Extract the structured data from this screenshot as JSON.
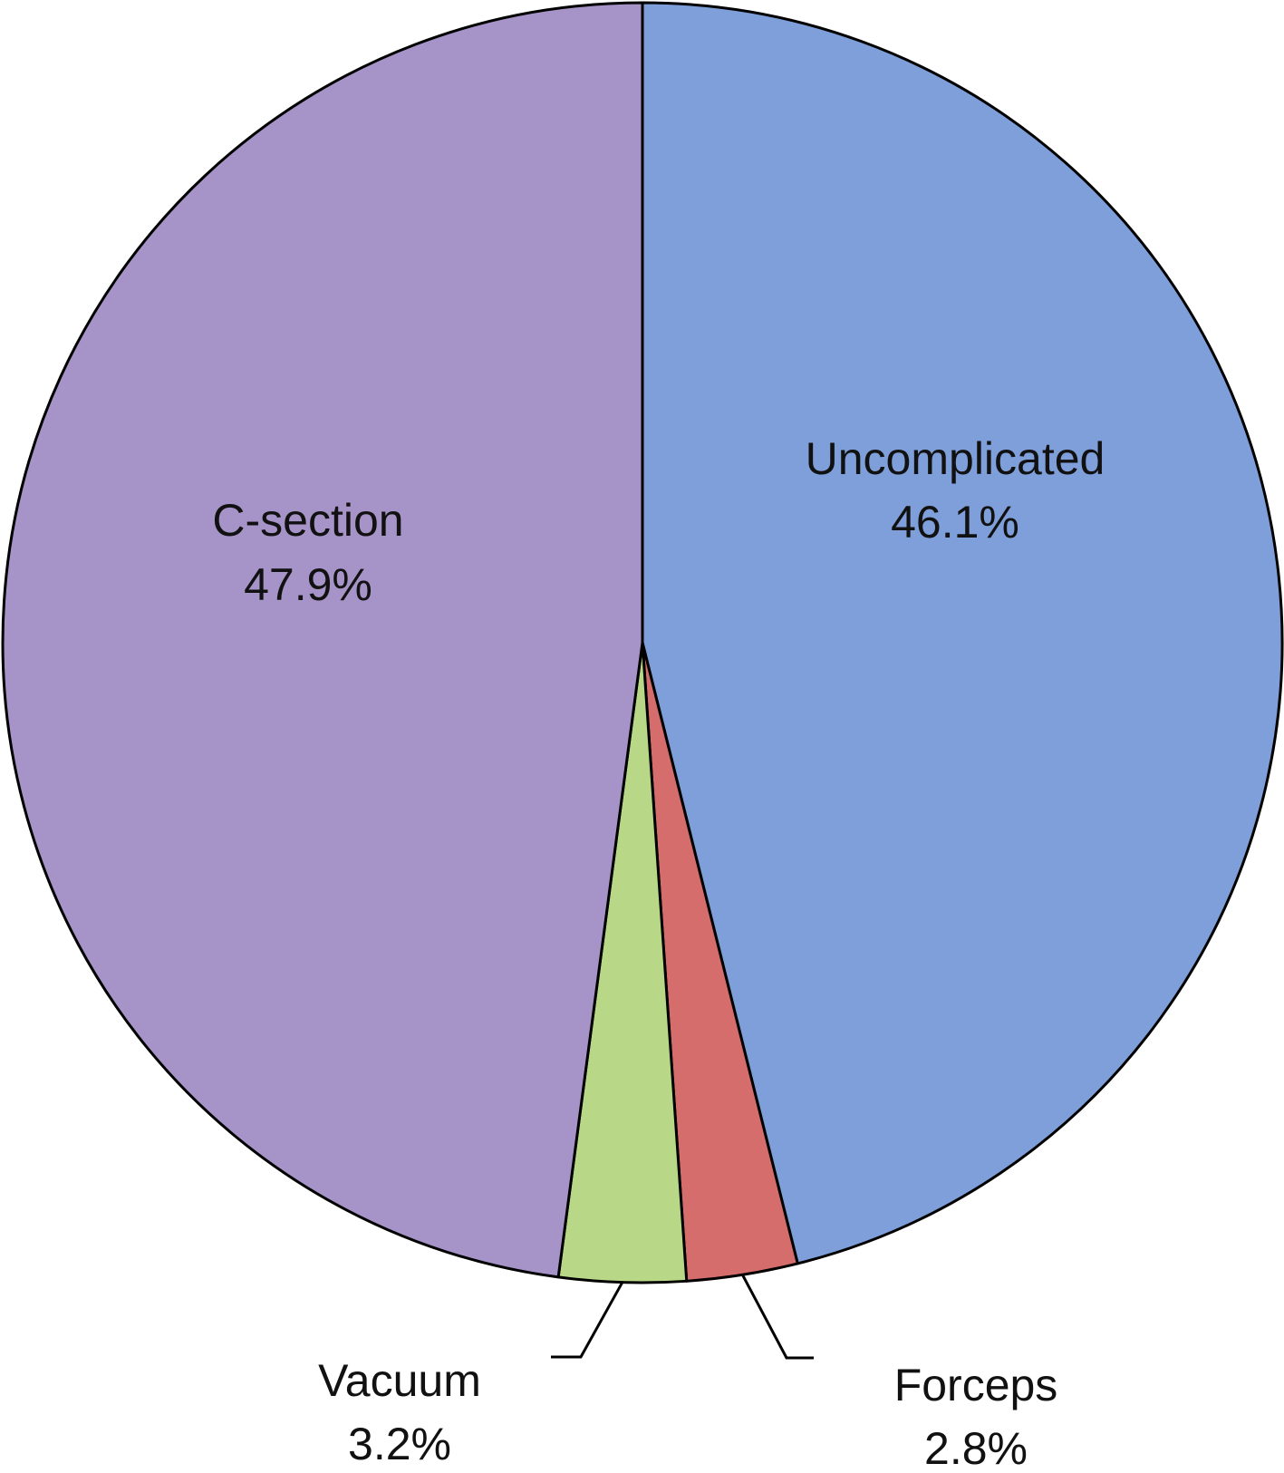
{
  "chart_data": {
    "type": "pie",
    "title": "",
    "slices": [
      {
        "name": "Uncomplicated",
        "label": "46.1%",
        "value": 46.1,
        "color": "#7e9fda"
      },
      {
        "name": "Forceps",
        "label": "2.8%",
        "value": 2.8,
        "color": "#d56d6d"
      },
      {
        "name": "Vacuum",
        "label": "3.2%",
        "value": 3.2,
        "color": "#b8d888"
      },
      {
        "name": "C-section",
        "label": "47.9%",
        "value": 47.9,
        "color": "#a693c7"
      }
    ],
    "start_angle": "top",
    "direction": "clockwise",
    "outline_color": "#000000"
  }
}
